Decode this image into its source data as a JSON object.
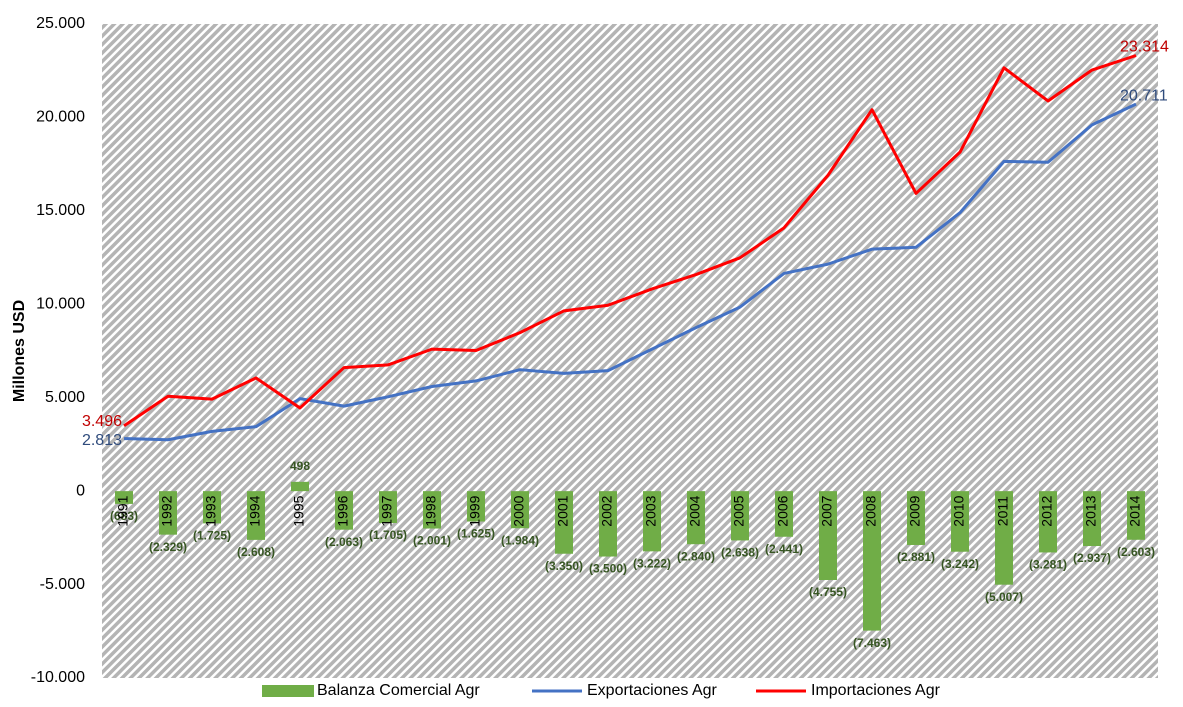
{
  "chart_data": {
    "type": "bar_line",
    "y_axis_label": "Millones USD",
    "categories": [
      "1991",
      "1992",
      "1993",
      "1994",
      "1995",
      "1996",
      "1997",
      "1998",
      "1999",
      "2000",
      "2001",
      "2002",
      "2003",
      "2004",
      "2005",
      "2006",
      "2007",
      "2008",
      "2009",
      "2010",
      "2011",
      "2012",
      "2013",
      "2014"
    ],
    "series": [
      {
        "name": "Balanza Comercial Agr",
        "kind": "bar",
        "color": "#70ad47",
        "values": [
          -683,
          -2329,
          -1725,
          -2608,
          498,
          -2063,
          -1705,
          -2001,
          -1625,
          -1984,
          -3350,
          -3500,
          -3222,
          -2840,
          -2638,
          -2441,
          -4755,
          -7463,
          -2881,
          -3242,
          -5007,
          -3281,
          -2937,
          -2603
        ],
        "value_labels": [
          "(683)",
          "(2.329)",
          "(1.725)",
          "(2.608)",
          "498",
          "(2.063)",
          "(1.705)",
          "(2.001)",
          "(1.625)",
          "(1.984)",
          "(3.350)",
          "(3.500)",
          "(3.222)",
          "(2.840)",
          "(2.638)",
          "(2.441)",
          "(4.755)",
          "(7.463)",
          "(2.881)",
          "(3.242)",
          "(5.007)",
          "(3.281)",
          "(2.937)",
          "(2.603)"
        ]
      },
      {
        "name": "Exportaciones Agr",
        "kind": "line",
        "color": "#4472c4",
        "values": [
          2813,
          2750,
          3200,
          3450,
          4950,
          4550,
          5050,
          5600,
          5900,
          6500,
          6300,
          6450,
          7600,
          8750,
          9850,
          11650,
          12150,
          12950,
          13050,
          14900,
          17650,
          17600,
          19600,
          20711
        ],
        "value_labels": [
          "2.813",
          null,
          null,
          null,
          null,
          null,
          null,
          null,
          null,
          null,
          null,
          null,
          null,
          null,
          null,
          null,
          null,
          null,
          null,
          null,
          null,
          null,
          null,
          "20.711"
        ]
      },
      {
        "name": "Importaciones Agr",
        "kind": "line",
        "color": "#ff0000",
        "values": [
          3496,
          5079,
          4925,
          6058,
          4452,
          6613,
          6755,
          7601,
          7525,
          8484,
          9650,
          9950,
          10822,
          11590,
          12488,
          14091,
          16905,
          20413,
          15931,
          18142,
          22657,
          20881,
          22537,
          23314
        ],
        "value_labels": [
          "3.496",
          null,
          null,
          null,
          null,
          null,
          null,
          null,
          null,
          null,
          null,
          null,
          null,
          null,
          null,
          null,
          null,
          null,
          null,
          null,
          null,
          null,
          null,
          "23.314"
        ]
      }
    ],
    "ylim": [
      -10000,
      25000
    ],
    "yticks": [
      {
        "value": -10000,
        "label": "-10.000"
      },
      {
        "value": -5000,
        "label": "-5.000"
      },
      0,
      {
        "value": 5000,
        "label": "5.000"
      },
      {
        "value": 10000,
        "label": "10.000"
      },
      {
        "value": 15000,
        "label": "15.000"
      },
      {
        "value": 20000,
        "label": "20.000"
      },
      {
        "value": 25000,
        "label": "25.000"
      }
    ],
    "legend": "bottom"
  }
}
